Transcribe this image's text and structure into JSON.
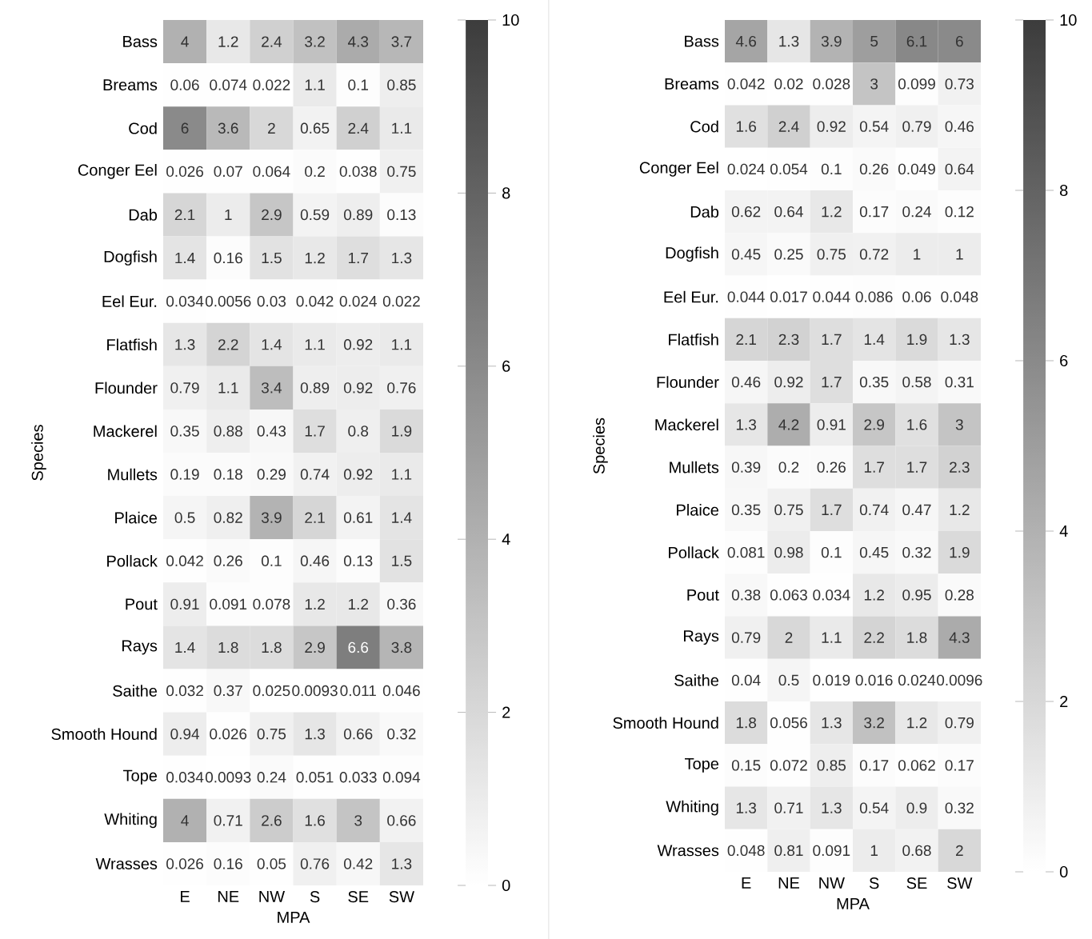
{
  "chart_data": [
    {
      "type": "heatmap",
      "xlabel": "MPA",
      "ylabel": "Species",
      "categories": [
        "E",
        "NE",
        "NW",
        "S",
        "SE",
        "SW"
      ],
      "y_categories": [
        "Bass",
        "Breams",
        "Cod",
        "Conger Eel",
        "Dab",
        "Dogfish",
        "Eel Eur.",
        "Flatfish",
        "Flounder",
        "Mackerel",
        "Mullets",
        "Plaice",
        "Pollack",
        "Pout",
        "Rays",
        "Saithe",
        "Smooth Hound",
        "Tope",
        "Whiting",
        "Wrasses"
      ],
      "cells": [
        [
          4,
          1.2,
          2.4,
          3.2,
          4.3,
          3.7
        ],
        [
          0.06,
          0.074,
          0.022,
          1.1,
          0.1,
          0.85
        ],
        [
          6,
          3.6,
          2,
          0.65,
          2.4,
          1.1
        ],
        [
          0.026,
          0.07,
          0.064,
          0.2,
          0.038,
          0.75
        ],
        [
          2.1,
          1,
          2.9,
          0.59,
          0.89,
          0.13
        ],
        [
          1.4,
          0.16,
          1.5,
          1.2,
          1.7,
          1.3
        ],
        [
          0.034,
          0.0056,
          0.03,
          0.042,
          0.024,
          0.022
        ],
        [
          1.3,
          2.2,
          1.4,
          1.1,
          0.92,
          1.1
        ],
        [
          0.79,
          1.1,
          3.4,
          0.89,
          0.92,
          0.76
        ],
        [
          0.35,
          0.88,
          0.43,
          1.7,
          0.8,
          1.9
        ],
        [
          0.19,
          0.18,
          0.29,
          0.74,
          0.92,
          1.1
        ],
        [
          0.5,
          0.82,
          3.9,
          2.1,
          0.61,
          1.4
        ],
        [
          0.042,
          0.26,
          0.1,
          0.46,
          0.13,
          1.5
        ],
        [
          0.91,
          0.091,
          0.078,
          1.2,
          1.2,
          0.36
        ],
        [
          1.4,
          1.8,
          1.8,
          2.9,
          6.6,
          3.8
        ],
        [
          0.032,
          0.37,
          0.025,
          0.0093,
          0.011,
          0.046
        ],
        [
          0.94,
          0.026,
          0.75,
          1.3,
          0.66,
          0.32
        ],
        [
          0.034,
          0.0093,
          0.24,
          0.051,
          0.033,
          0.094
        ],
        [
          4,
          0.71,
          2.6,
          1.6,
          3,
          0.66
        ],
        [
          0.026,
          0.16,
          0.05,
          0.76,
          0.42,
          1.3
        ]
      ],
      "clim": [
        0,
        10
      ],
      "cticks": [
        0,
        2,
        4,
        6,
        8,
        10
      ],
      "data_labels": true
    },
    {
      "type": "heatmap",
      "xlabel": "MPA",
      "ylabel": "Species",
      "categories": [
        "E",
        "NE",
        "NW",
        "S",
        "SE",
        "SW"
      ],
      "y_categories": [
        "Bass",
        "Breams",
        "Cod",
        "Conger Eel",
        "Dab",
        "Dogfish",
        "Eel Eur.",
        "Flatfish",
        "Flounder",
        "Mackerel",
        "Mullets",
        "Plaice",
        "Pollack",
        "Pout",
        "Rays",
        "Saithe",
        "Smooth Hound",
        "Tope",
        "Whiting",
        "Wrasses"
      ],
      "cells": [
        [
          4.6,
          1.3,
          3.9,
          5,
          6.1,
          6
        ],
        [
          0.042,
          0.02,
          0.028,
          3,
          0.099,
          0.73
        ],
        [
          1.6,
          2.4,
          0.92,
          0.54,
          0.79,
          0.46
        ],
        [
          0.024,
          0.054,
          0.1,
          0.26,
          0.049,
          0.64
        ],
        [
          0.62,
          0.64,
          1.2,
          0.17,
          0.24,
          0.12
        ],
        [
          0.45,
          0.25,
          0.75,
          0.72,
          1,
          1
        ],
        [
          0.044,
          0.017,
          0.044,
          0.086,
          0.06,
          0.048
        ],
        [
          2.1,
          2.3,
          1.7,
          1.4,
          1.9,
          1.3
        ],
        [
          0.46,
          0.92,
          1.7,
          0.35,
          0.58,
          0.31
        ],
        [
          1.3,
          4.2,
          0.91,
          2.9,
          1.6,
          3
        ],
        [
          0.39,
          0.2,
          0.26,
          1.7,
          1.7,
          2.3
        ],
        [
          0.35,
          0.75,
          1.7,
          0.74,
          0.47,
          1.2
        ],
        [
          0.081,
          0.98,
          0.1,
          0.45,
          0.32,
          1.9
        ],
        [
          0.38,
          0.063,
          0.034,
          1.2,
          0.95,
          0.28
        ],
        [
          0.79,
          2,
          1.1,
          2.2,
          1.8,
          4.3
        ],
        [
          0.04,
          0.5,
          0.019,
          0.016,
          0.024,
          0.0096
        ],
        [
          1.8,
          0.056,
          1.3,
          3.2,
          1.2,
          0.79
        ],
        [
          0.15,
          0.072,
          0.85,
          0.17,
          0.062,
          0.17
        ],
        [
          1.3,
          0.71,
          1.3,
          0.54,
          0.9,
          0.32
        ],
        [
          0.048,
          0.81,
          0.091,
          1,
          0.68,
          2
        ]
      ],
      "clim": [
        0,
        10
      ],
      "cticks": [
        0,
        2,
        4,
        6,
        8,
        10
      ],
      "data_labels": true
    }
  ]
}
